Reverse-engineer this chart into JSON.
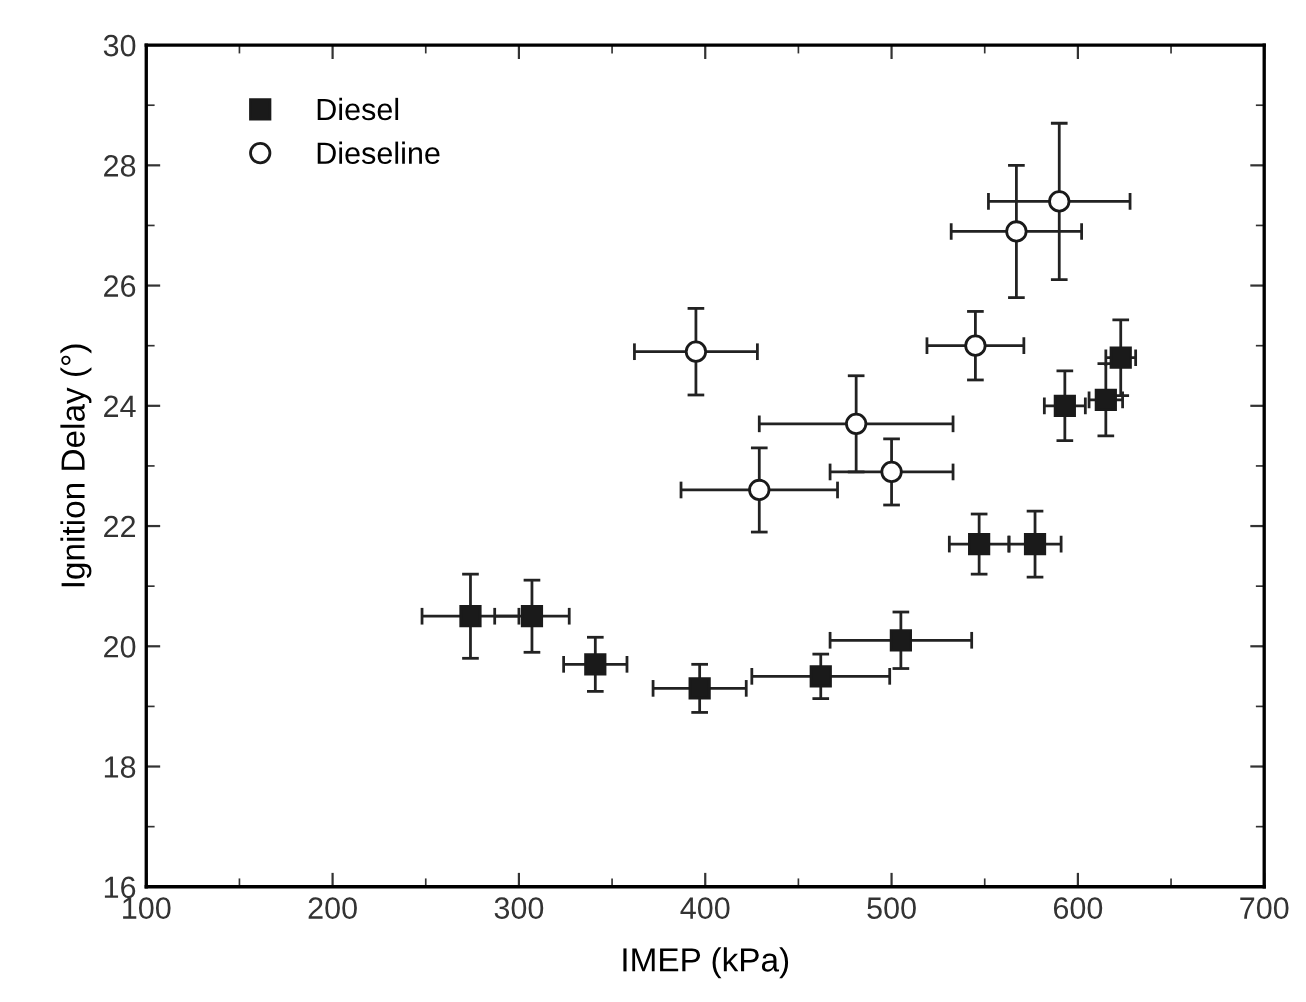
{
  "chart_data": {
    "type": "scatter",
    "xlabel": "IMEP (kPa)",
    "ylabel": "Ignition Delay (°)",
    "xlim": [
      100,
      700
    ],
    "xticks": [
      100,
      200,
      300,
      400,
      500,
      600,
      700
    ],
    "ylim": [
      16,
      30
    ],
    "yticks": [
      16,
      18,
      20,
      22,
      24,
      26,
      28,
      30
    ],
    "legend": "top left",
    "grid": false,
    "series": [
      {
        "name": "Diesel",
        "color": "#1a1a1a",
        "marker": "square",
        "x": [
          274,
          307,
          341,
          397,
          462,
          505,
          547,
          577,
          593,
          615,
          623
        ],
        "values": [
          20.5,
          20.5,
          19.7,
          19.3,
          19.5,
          20.1,
          21.7,
          21.7,
          24.0,
          24.1,
          24.8
        ],
        "xerrors": [
          26,
          20,
          17,
          25,
          37,
          38,
          16,
          14,
          11,
          9,
          8
        ],
        "errors": [
          0.7,
          0.6,
          0.45,
          0.4,
          0.37,
          0.47,
          0.5,
          0.55,
          0.58,
          0.6,
          0.63
        ]
      },
      {
        "name": "Dieseline",
        "color": "#ffffff",
        "marker": "circle",
        "x": [
          395,
          429,
          481,
          500,
          545,
          567,
          590
        ],
        "values": [
          24.9,
          22.6,
          23.7,
          22.9,
          25.0,
          26.9,
          27.4
        ],
        "xerrors": [
          33,
          42,
          52,
          33,
          26,
          35,
          38
        ],
        "errors": [
          0.72,
          0.7,
          0.8,
          0.55,
          0.57,
          1.1,
          1.3
        ]
      }
    ]
  }
}
